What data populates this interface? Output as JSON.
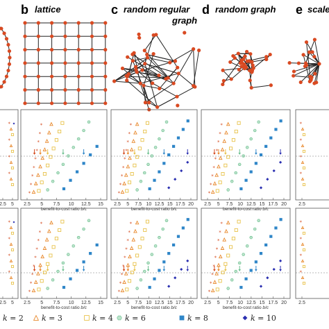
{
  "panels": [
    {
      "letter": "b",
      "title": "lattice"
    },
    {
      "letter": "c",
      "title": "random regular",
      "title2": "graph"
    },
    {
      "letter": "d",
      "title": "random graph"
    },
    {
      "letter": "e",
      "title": "scale"
    }
  ],
  "x_label": "benefit-to-cost ratio",
  "x_label_var": "b/c",
  "tick_sets": {
    "b": [
      "2.5",
      "5",
      "7.5",
      "10",
      "12.5",
      "15"
    ],
    "c": [
      "2.5",
      "5",
      "7.5",
      "10",
      "12.5",
      "15",
      "17.5",
      "20"
    ],
    "d": [
      "2.5",
      "5",
      "7.5",
      "10",
      "12.5",
      "15",
      "17.5",
      "20"
    ],
    "e": [
      "2.5",
      "5"
    ],
    "a": [
      "2.5",
      "5"
    ]
  },
  "legend": [
    {
      "label": "= 2",
      "var": "k",
      "marker": "star",
      "color": "#d44a1e"
    },
    {
      "label": "= 3",
      "var": "k",
      "marker": "triangle",
      "color": "#e8892d"
    },
    {
      "label": "= 4",
      "var": "k",
      "marker": "square-open",
      "color": "#e8c24a"
    },
    {
      "label": "= 6",
      "var": "k",
      "marker": "hexagon",
      "color": "#6cc08f"
    },
    {
      "label": "= 8",
      "var": "k",
      "marker": "square",
      "color": "#2f86c8"
    },
    {
      "label": "= 10",
      "var": "k",
      "marker": "diamond",
      "color": "#2a2fb0"
    }
  ],
  "colors": {
    "node": "#d94a22",
    "edge": "#222222",
    "arrow": "#2a2fb0"
  }
}
